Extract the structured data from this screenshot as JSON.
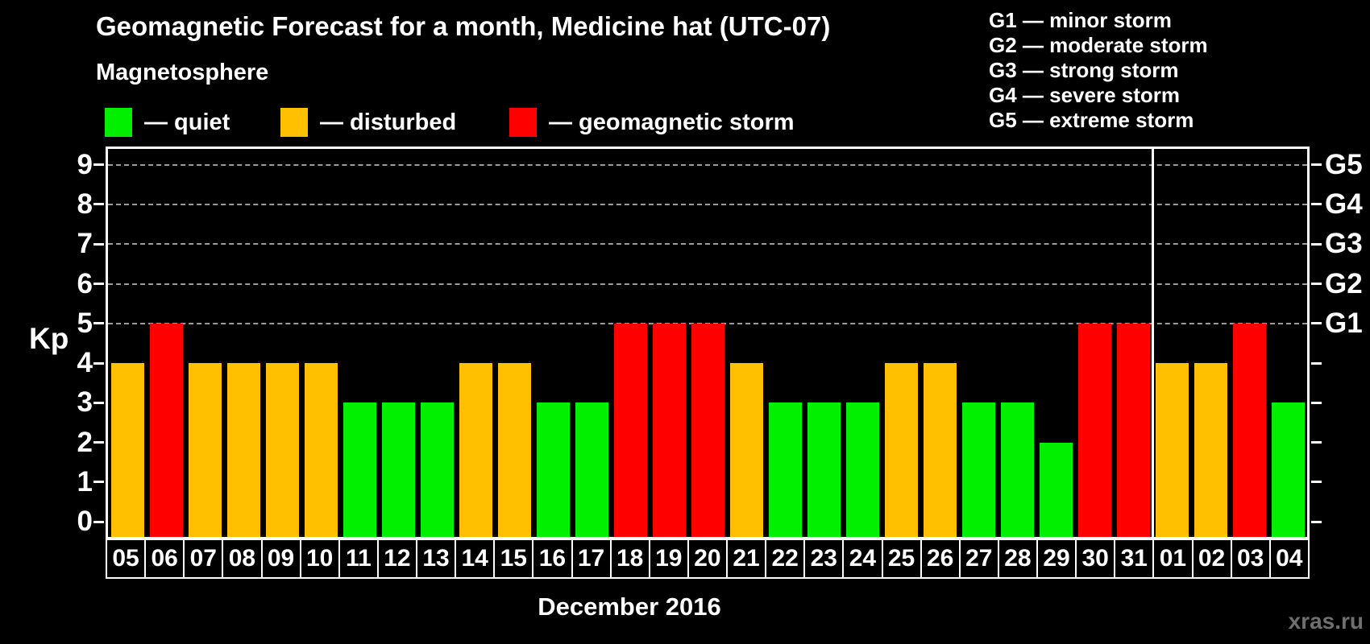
{
  "title": "Geomagnetic Forecast for a month, Medicine hat (UTC-07)",
  "subtitle": "Magnetosphere",
  "legend": {
    "items": [
      {
        "key": "quiet",
        "label": "— quiet",
        "color": "#00f000",
        "x": 130
      },
      {
        "key": "disturbed",
        "label": "— disturbed",
        "color": "#ffc000",
        "x": 348
      },
      {
        "key": "storm",
        "label": "— geomagnetic storm",
        "color": "#ff0000",
        "x": 632
      }
    ]
  },
  "g_legend": [
    "G1 — minor storm",
    "G2 — moderate storm",
    "G3 — strong storm",
    "G4 — severe storm",
    "G5 — extreme storm"
  ],
  "axis": {
    "kp_label": "Kp",
    "kp_ticks": [
      0,
      1,
      2,
      3,
      4,
      5,
      6,
      7,
      8,
      9
    ],
    "g_labels": [
      {
        "text": "G1",
        "kp": 5
      },
      {
        "text": "G2",
        "kp": 6
      },
      {
        "text": "G3",
        "kp": 7
      },
      {
        "text": "G4",
        "kp": 8
      },
      {
        "text": "G5",
        "kp": 9
      }
    ]
  },
  "month_label": "December 2016",
  "watermark": "xras.ru",
  "chart_data": {
    "type": "bar",
    "title": "Geomagnetic Forecast for a month, Medicine hat (UTC-07)",
    "xlabel": "December 2016",
    "ylabel": "Kp",
    "ylim": [
      0,
      9
    ],
    "grid": "dashed horizontal lines at Kp 5-9 only",
    "legend_position": "top-left (status colors), top-right (G-scale)",
    "categories": [
      "05",
      "06",
      "07",
      "08",
      "09",
      "10",
      "11",
      "12",
      "13",
      "14",
      "15",
      "16",
      "17",
      "18",
      "19",
      "20",
      "21",
      "22",
      "23",
      "24",
      "25",
      "26",
      "27",
      "28",
      "29",
      "30",
      "31",
      "01",
      "02",
      "03",
      "04"
    ],
    "values": [
      4,
      5,
      4,
      4,
      4,
      4,
      3,
      3,
      3,
      4,
      4,
      3,
      3,
      5,
      5,
      5,
      4,
      3,
      3,
      3,
      4,
      4,
      3,
      3,
      2,
      5,
      5,
      4,
      4,
      5,
      3
    ],
    "statuses": [
      "disturbed",
      "storm",
      "disturbed",
      "disturbed",
      "disturbed",
      "disturbed",
      "quiet",
      "quiet",
      "quiet",
      "disturbed",
      "disturbed",
      "quiet",
      "quiet",
      "storm",
      "storm",
      "storm",
      "disturbed",
      "quiet",
      "quiet",
      "quiet",
      "disturbed",
      "disturbed",
      "quiet",
      "quiet",
      "quiet",
      "storm",
      "storm",
      "disturbed",
      "disturbed",
      "storm",
      "quiet"
    ],
    "colors": {
      "quiet": "#00f000",
      "disturbed": "#ffc000",
      "storm": "#ff0000"
    },
    "gridline_values": [
      5,
      6,
      7,
      8,
      9
    ],
    "month_boundary_after_index": 26
  }
}
